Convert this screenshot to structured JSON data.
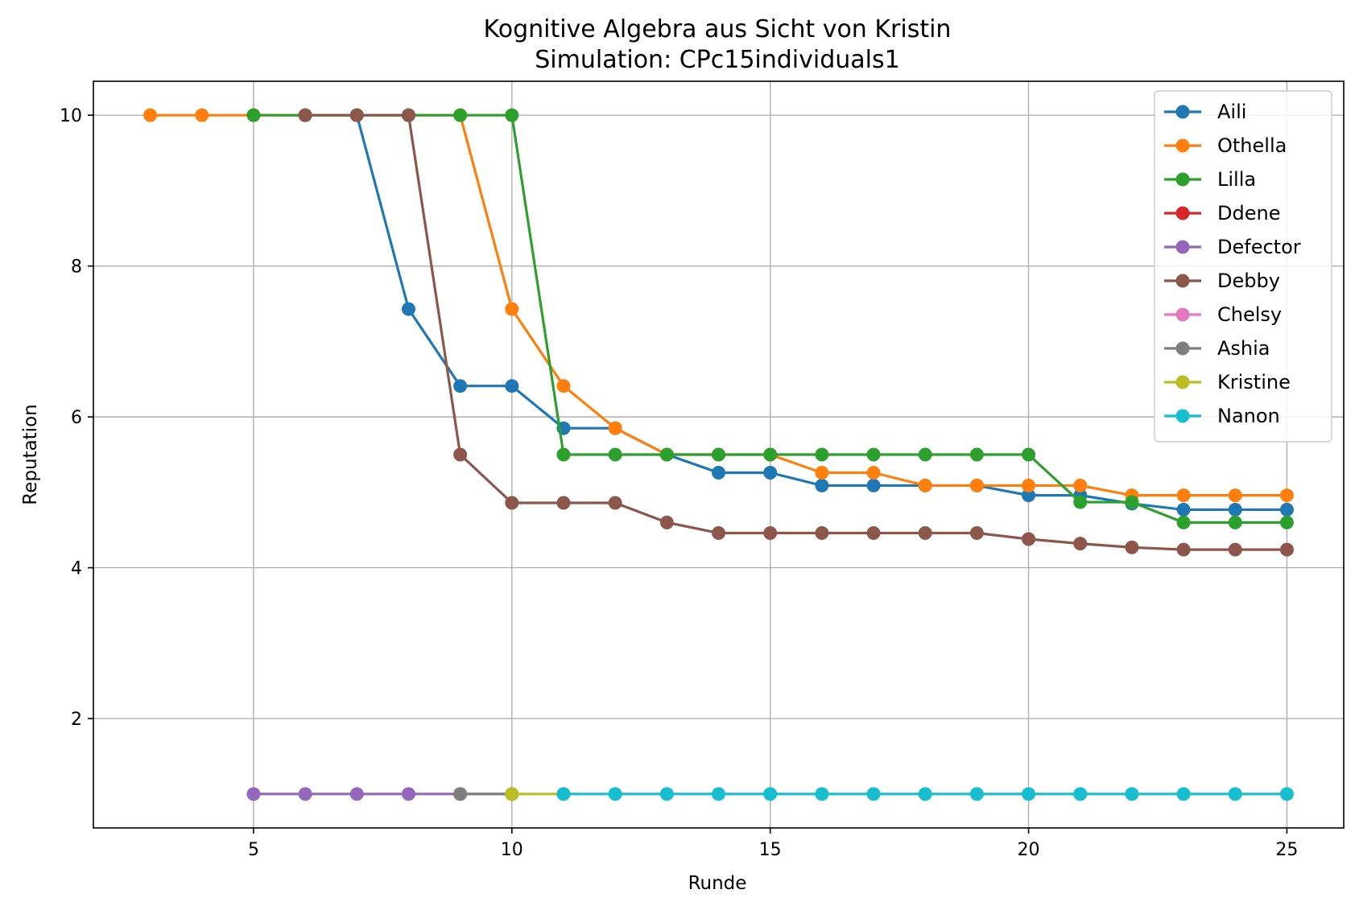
{
  "chart_data": {
    "type": "line",
    "title": "Kognitive Algebra aus Sicht von Kristin",
    "subtitle": "Simulation: CPc15individuals1",
    "xlabel": "Runde",
    "ylabel": "Reputation",
    "xlim": [
      1.9,
      26.1
    ],
    "ylim": [
      0.55,
      10.45
    ],
    "xticks": [
      5,
      10,
      15,
      20,
      25
    ],
    "yticks": [
      2,
      4,
      6,
      8,
      10
    ],
    "grid": true,
    "legend_position": "top-right",
    "series": [
      {
        "name": "Aili",
        "color": "#1f77b4",
        "x": [
          7,
          8,
          9,
          10,
          11,
          12,
          13,
          14,
          15,
          16,
          17,
          18,
          19,
          20,
          21,
          22,
          23,
          24,
          25
        ],
        "y": [
          10,
          7.43,
          6.41,
          6.41,
          5.85,
          5.85,
          5.5,
          5.26,
          5.26,
          5.09,
          5.09,
          5.09,
          5.09,
          4.96,
          4.96,
          4.85,
          4.77,
          4.77,
          4.77
        ]
      },
      {
        "name": "Othella",
        "color": "#ff7f0e",
        "x": [
          3,
          4,
          5,
          6,
          7,
          8,
          9,
          10,
          11,
          12,
          13,
          14,
          15,
          16,
          17,
          18,
          19,
          20,
          21,
          22,
          23,
          24,
          25
        ],
        "y": [
          10,
          10,
          10,
          10,
          10,
          10,
          10,
          7.43,
          6.41,
          5.85,
          5.5,
          5.5,
          5.5,
          5.26,
          5.26,
          5.09,
          5.09,
          5.09,
          5.09,
          4.96,
          4.96,
          4.96,
          4.96
        ]
      },
      {
        "name": "Lilla",
        "color": "#2ca02c",
        "x": [
          5,
          6,
          7,
          8,
          9,
          10,
          11,
          12,
          13,
          14,
          15,
          16,
          17,
          18,
          19,
          20,
          21,
          22,
          23,
          24,
          25
        ],
        "y": [
          10,
          10,
          10,
          10,
          10,
          10,
          5.5,
          5.5,
          5.5,
          5.5,
          5.5,
          5.5,
          5.5,
          5.5,
          5.5,
          5.5,
          4.87,
          4.87,
          4.6,
          4.6,
          4.6
        ]
      },
      {
        "name": "Ddene",
        "color": "#d62728",
        "x": [],
        "y": []
      },
      {
        "name": "Defector",
        "color": "#9467bd",
        "x": [
          5,
          6,
          7,
          8,
          9,
          10
        ],
        "y": [
          1,
          1,
          1,
          1,
          1,
          1
        ]
      },
      {
        "name": "Debby",
        "color": "#8c564b",
        "x": [
          6,
          7,
          8,
          9,
          10,
          11,
          12,
          13,
          14,
          15,
          16,
          17,
          18,
          19,
          20,
          21,
          22,
          23,
          24,
          25
        ],
        "y": [
          10,
          10,
          10,
          5.5,
          4.86,
          4.86,
          4.86,
          4.6,
          4.46,
          4.46,
          4.46,
          4.46,
          4.46,
          4.46,
          4.38,
          4.32,
          4.27,
          4.24,
          4.24,
          4.24
        ]
      },
      {
        "name": "Chelsy",
        "color": "#e377c2",
        "x": [],
        "y": []
      },
      {
        "name": "Ashia",
        "color": "#7f7f7f",
        "x": [
          9,
          10
        ],
        "y": [
          1,
          1
        ]
      },
      {
        "name": "Kristine",
        "color": "#bcbd22",
        "x": [
          10,
          11
        ],
        "y": [
          1,
          1
        ]
      },
      {
        "name": "Nanon",
        "color": "#17becf",
        "x": [
          11,
          12,
          13,
          14,
          15,
          16,
          17,
          18,
          19,
          20,
          21,
          22,
          23,
          24,
          25
        ],
        "y": [
          1,
          1,
          1,
          1,
          1,
          1,
          1,
          1,
          1,
          1,
          1,
          1,
          1,
          1,
          1
        ]
      }
    ]
  }
}
